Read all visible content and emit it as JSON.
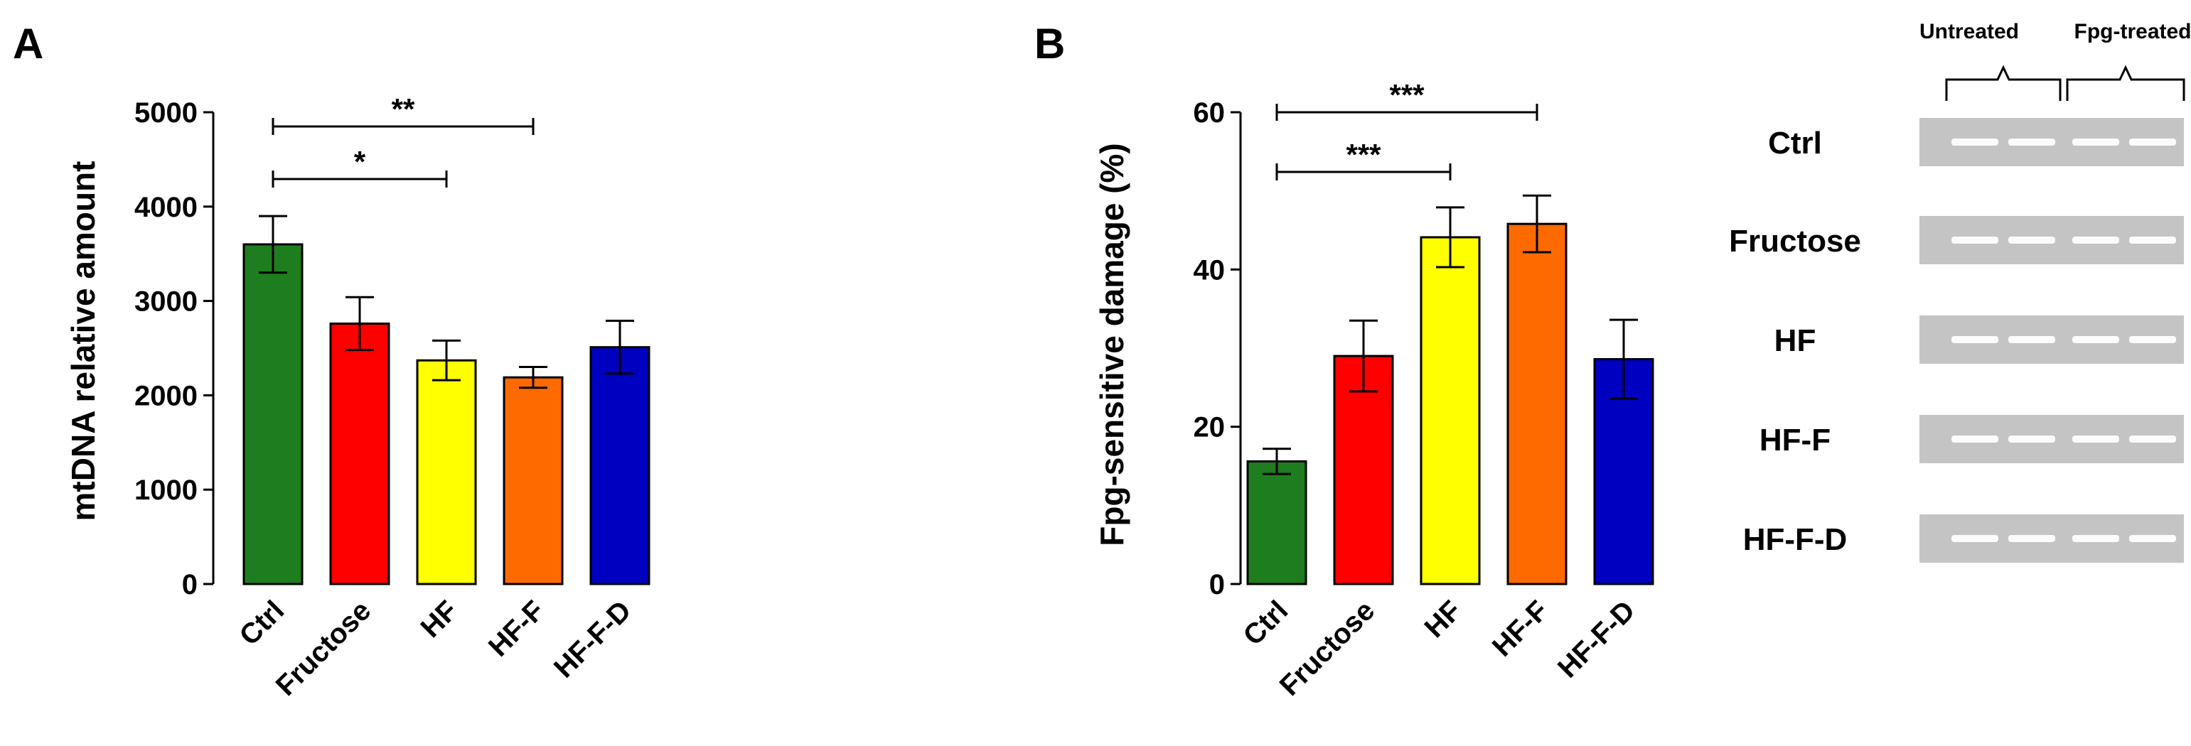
{
  "panels": {
    "A": {
      "letter": "A"
    },
    "B": {
      "letter": "B"
    }
  },
  "chart_data": [
    {
      "panel": "A",
      "type": "bar",
      "categories": [
        "Ctrl",
        "Fructose",
        "HF",
        "HF-F",
        "HF-F-D"
      ],
      "values": [
        3600,
        2760,
        2370,
        2190,
        2510
      ],
      "errors": [
        300,
        280,
        210,
        110,
        280
      ],
      "colors": [
        "#1e7d1e",
        "#ff0000",
        "#ffff00",
        "#ff6a00",
        "#0000c0"
      ],
      "title": "",
      "xlabel": "",
      "ylabel": "mtDNA relative amount",
      "ylim": [
        0,
        5000
      ],
      "yticks": [
        0,
        1000,
        2000,
        3000,
        4000,
        5000
      ],
      "significance": [
        {
          "from": 0,
          "to": 3,
          "label": "**"
        },
        {
          "from": 0,
          "to": 2,
          "label": "*"
        }
      ]
    },
    {
      "panel": "B",
      "type": "bar",
      "categories": [
        "Ctrl",
        "Fructose",
        "HF",
        "HF-F",
        "HF-F-D"
      ],
      "values": [
        15.6,
        29,
        44.1,
        45.8,
        28.6
      ],
      "errors": [
        1.6,
        4.5,
        3.8,
        3.6,
        5
      ],
      "colors": [
        "#1e7d1e",
        "#ff0000",
        "#ffff00",
        "#ff6a00",
        "#0000c0"
      ],
      "title": "",
      "xlabel": "",
      "ylabel": "Fpg-sensitive damage (%)",
      "ylim": [
        0,
        60
      ],
      "yticks": [
        0,
        20,
        40,
        60
      ],
      "significance": [
        {
          "from": 0,
          "to": 3,
          "label": "***"
        },
        {
          "from": 0,
          "to": 2,
          "label": "***"
        }
      ]
    }
  ],
  "gel": {
    "column_labels": [
      "Untreated",
      "Fpg-treated"
    ],
    "row_labels": [
      "Ctrl",
      "Fructose",
      "HF",
      "HF-F",
      "HF-F-D"
    ]
  }
}
